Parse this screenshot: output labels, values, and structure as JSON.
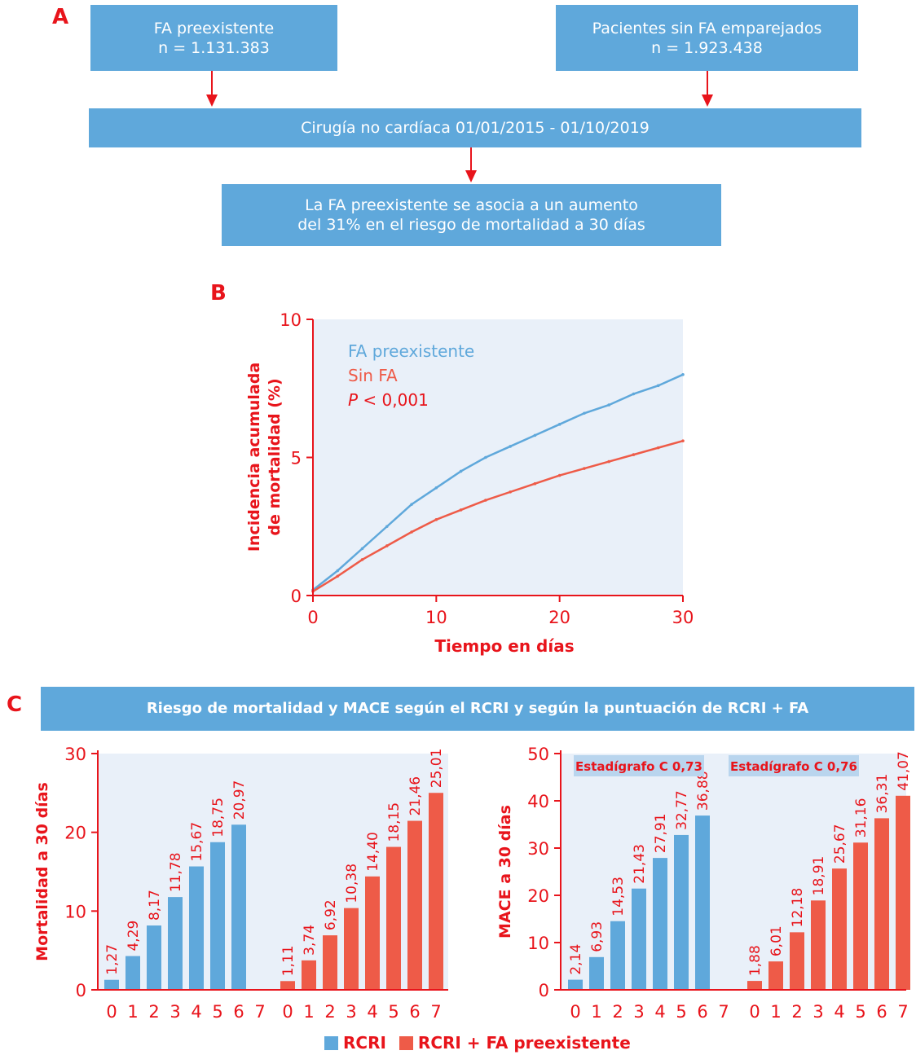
{
  "colors": {
    "blue": "#5fa8db",
    "red": "#ee5b48",
    "accent": "#e8141b",
    "panel_bg": "#e9f0f9"
  },
  "panel_a": {
    "letter": "A",
    "box_fa": {
      "line1": "FA preexistente",
      "line2": "n = 1.131.383"
    },
    "box_sinfa": {
      "line1": "Pacientes sin FA emparejados",
      "line2": "n = 1.923.438"
    },
    "box_surgery": {
      "text": "Cirugía no cardíaca 01/01/2015 - 01/10/2019"
    },
    "box_result": {
      "line1": "La FA preexistente se asocia a un aumento",
      "line2": "del 31% en el riesgo de mortalidad a 30 días"
    }
  },
  "panel_b": {
    "letter": "B"
  },
  "panel_c": {
    "letter": "C",
    "banner": "Riesgo de mortalidad y MACE según el RCRI y según la puntuación de RCRI + FA",
    "legend": {
      "rcri": "RCRI",
      "rcri_fa": "RCRI + FA preexistente"
    }
  },
  "chart_data": [
    {
      "type": "line",
      "xlabel": "Tiempo en días",
      "ylabel": [
        "Incidencia acumulada",
        "de mortalidad (%)"
      ],
      "xlim": [
        0,
        30
      ],
      "ylim": [
        0,
        10
      ],
      "xticks": [
        "0",
        "10",
        "20",
        "30"
      ],
      "yticks": [
        "0",
        "5",
        "10"
      ],
      "legend_position": "top-left",
      "annotation": {
        "p": "P",
        "rest": " < 0,001"
      },
      "series": [
        {
          "name": "FA preexistente",
          "color": "#5fa8db",
          "x": [
            0,
            2,
            4,
            6,
            8,
            10,
            12,
            14,
            16,
            18,
            20,
            22,
            24,
            26,
            28,
            30
          ],
          "y": [
            0.2,
            0.9,
            1.7,
            2.5,
            3.3,
            3.9,
            4.5,
            5.0,
            5.4,
            5.8,
            6.2,
            6.6,
            6.9,
            7.3,
            7.6,
            8.0
          ]
        },
        {
          "name": "Sin FA",
          "color": "#ee5b48",
          "x": [
            0,
            2,
            4,
            6,
            8,
            10,
            12,
            14,
            16,
            18,
            20,
            22,
            24,
            26,
            28,
            30
          ],
          "y": [
            0.15,
            0.7,
            1.3,
            1.8,
            2.3,
            2.75,
            3.1,
            3.45,
            3.75,
            4.05,
            4.35,
            4.6,
            4.85,
            5.1,
            5.35,
            5.6
          ]
        }
      ]
    },
    {
      "type": "bar",
      "ylabel": "Mortalidad a 30 días",
      "ylim": [
        0,
        30
      ],
      "yticks": [
        "0",
        "10",
        "20",
        "30"
      ],
      "categories": [
        "0",
        "1",
        "2",
        "3",
        "4",
        "5",
        "6",
        "7"
      ],
      "series": [
        {
          "name": "RCRI",
          "color": "#5fa8db",
          "values": [
            1.27,
            4.29,
            8.17,
            11.78,
            15.67,
            18.75,
            20.97,
            null
          ],
          "labels": [
            "1,27",
            "4,29",
            "8,17",
            "11,78",
            "15,67",
            "18,75",
            "20,97",
            ""
          ]
        },
        {
          "name": "RCRI + FA preexistente",
          "color": "#ee5b48",
          "values": [
            1.11,
            3.74,
            6.92,
            10.38,
            14.4,
            18.15,
            21.46,
            25.01
          ],
          "labels": [
            "1,11",
            "3,74",
            "6,92",
            "10,38",
            "14,40",
            "18,15",
            "21,46",
            "25,01"
          ]
        }
      ]
    },
    {
      "type": "bar",
      "ylabel": "MACE a 30 días",
      "ylim": [
        0,
        50
      ],
      "yticks": [
        "0",
        "10",
        "20",
        "30",
        "40",
        "50"
      ],
      "categories": [
        "0",
        "1",
        "2",
        "3",
        "4",
        "5",
        "6",
        "7"
      ],
      "annotations": [
        "Estadígrafo C 0,73",
        "Estadígrafo C 0,76"
      ],
      "series": [
        {
          "name": "RCRI",
          "color": "#5fa8db",
          "values": [
            2.14,
            6.93,
            14.53,
            21.43,
            27.91,
            32.77,
            36.88,
            null
          ],
          "labels": [
            "2,14",
            "6,93",
            "14,53",
            "21,43",
            "27,91",
            "32,77",
            "36,88",
            ""
          ]
        },
        {
          "name": "RCRI + FA preexistente",
          "color": "#ee5b48",
          "values": [
            1.88,
            6.01,
            12.18,
            18.91,
            25.67,
            31.16,
            36.31,
            41.07
          ],
          "labels": [
            "1,88",
            "6,01",
            "12,18",
            "18,91",
            "25,67",
            "31,16",
            "36,31",
            "41,07"
          ]
        }
      ]
    }
  ]
}
